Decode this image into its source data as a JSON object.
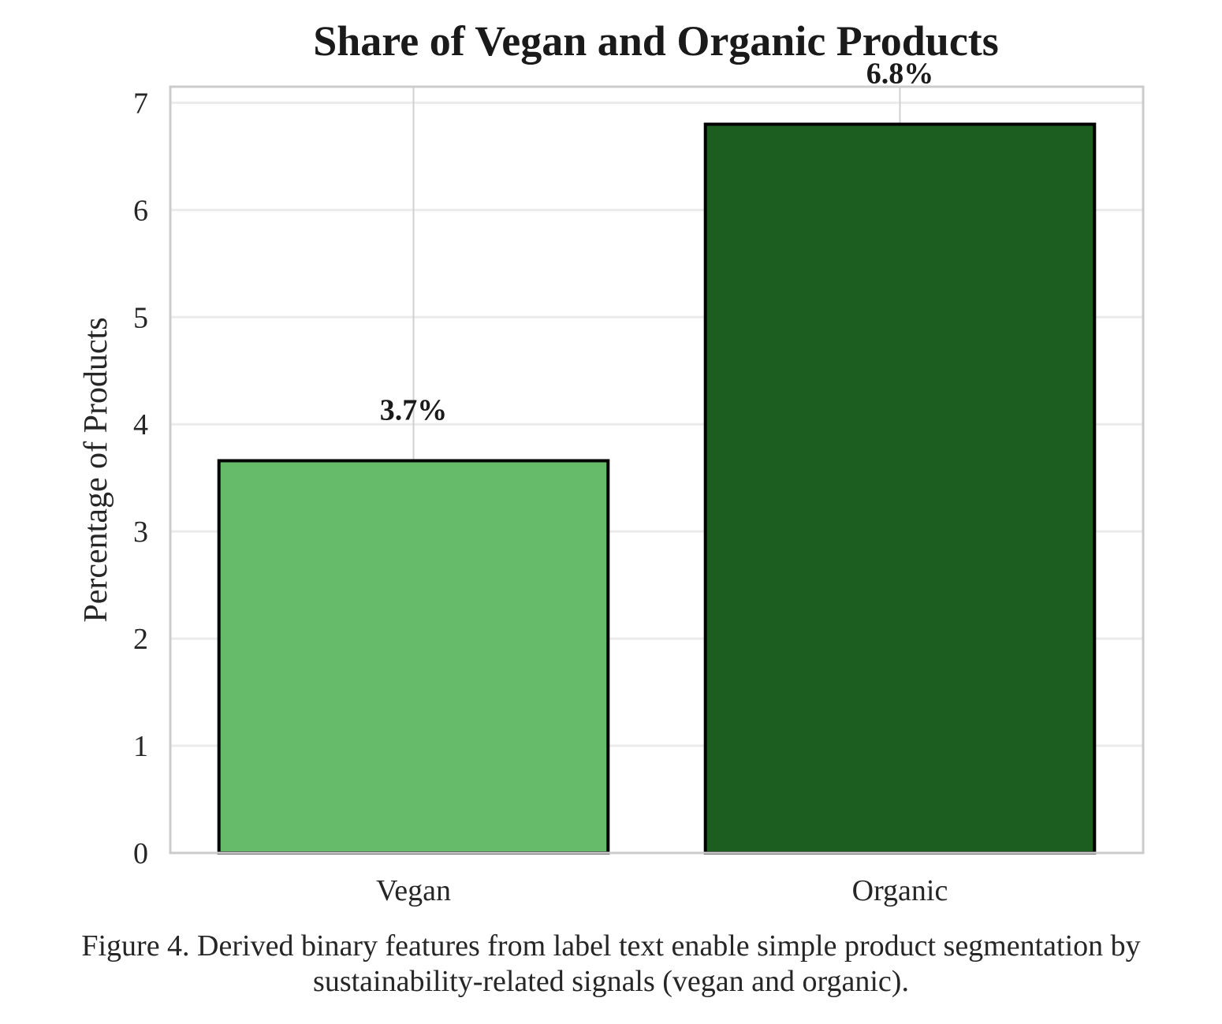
{
  "chart_data": {
    "type": "bar",
    "title": "Share of Vegan and Organic Products",
    "xlabel": "",
    "ylabel": "Percentage of Products",
    "categories": [
      "Vegan",
      "Organic"
    ],
    "values": [
      3.66,
      6.8
    ],
    "data_labels": [
      "3.7%",
      "6.8%"
    ],
    "colors": [
      "#66bb6a",
      "#1b5e20"
    ],
    "edge_color": "#000000",
    "ylim": [
      0,
      7.15
    ],
    "yticks": [
      0,
      1,
      2,
      3,
      4,
      5,
      6,
      7
    ],
    "grid": true
  },
  "caption": "Figure 4. Derived binary features from label text enable simple product segmentation by sustainability-related signals (vegan and organic)."
}
